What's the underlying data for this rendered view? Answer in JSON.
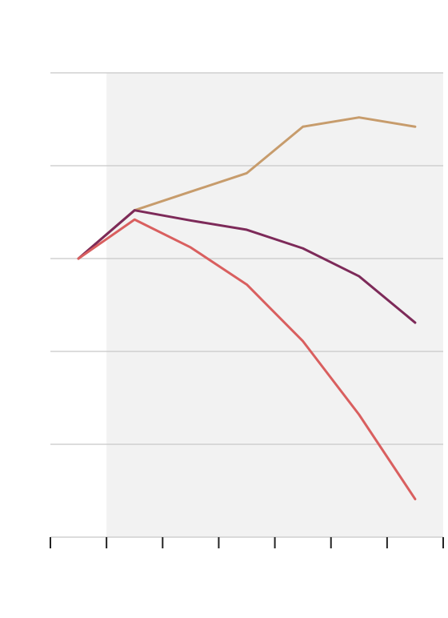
{
  "chart_data": {
    "type": "line",
    "x": [
      0.5,
      1.5,
      2.5,
      3.5,
      4.5,
      5.5,
      6.5
    ],
    "xlim": [
      0,
      7
    ],
    "xticks": [
      0,
      1,
      2,
      3,
      4,
      5,
      6,
      7
    ],
    "ylim": [
      0,
      5
    ],
    "yticks": [
      0,
      1,
      2,
      3,
      4,
      5
    ],
    "grid": true,
    "shaded_xrange": [
      1,
      7
    ],
    "shade_color": "#f2f2f2",
    "series": [
      {
        "color": "#c79c6c",
        "values": [
          3.0,
          3.52,
          3.72,
          3.92,
          4.42,
          4.52,
          4.42
        ]
      },
      {
        "color": "#7d2a59",
        "values": [
          3.0,
          3.52,
          3.41,
          3.31,
          3.11,
          2.81,
          2.31
        ]
      },
      {
        "color": "#d95f5f",
        "values": [
          3.0,
          3.42,
          3.12,
          2.72,
          2.11,
          1.32,
          0.41
        ]
      }
    ]
  }
}
